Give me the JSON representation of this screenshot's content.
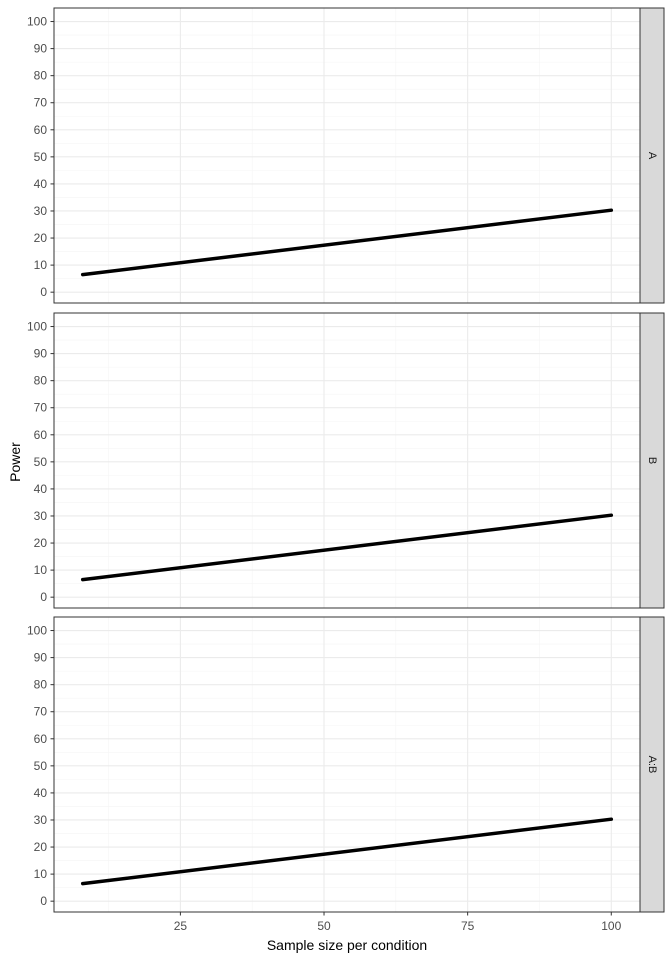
{
  "chart_data": {
    "type": "line",
    "xlabel": "Sample size per condition",
    "ylabel": "Power",
    "xlim": [
      3,
      105
    ],
    "ylim": [
      -4,
      105
    ],
    "x_ticks": [
      25,
      50,
      75,
      100
    ],
    "y_ticks": [
      0,
      10,
      20,
      30,
      40,
      50,
      60,
      70,
      80,
      90,
      100
    ],
    "grid": true,
    "facets": [
      {
        "label": "A",
        "x": [
          8,
          100
        ],
        "y": [
          6.5,
          30.3
        ]
      },
      {
        "label": "B",
        "x": [
          8,
          100
        ],
        "y": [
          6.5,
          30.3
        ]
      },
      {
        "label": "A:B",
        "x": [
          8,
          100
        ],
        "y": [
          6.5,
          30.3
        ]
      }
    ],
    "colors": {
      "line": "#000000",
      "grid_major": "#ebebeb",
      "grid_minor": "#f5f5f5",
      "strip_fill": "#d9d9d9",
      "panel_border": "#333333"
    }
  }
}
